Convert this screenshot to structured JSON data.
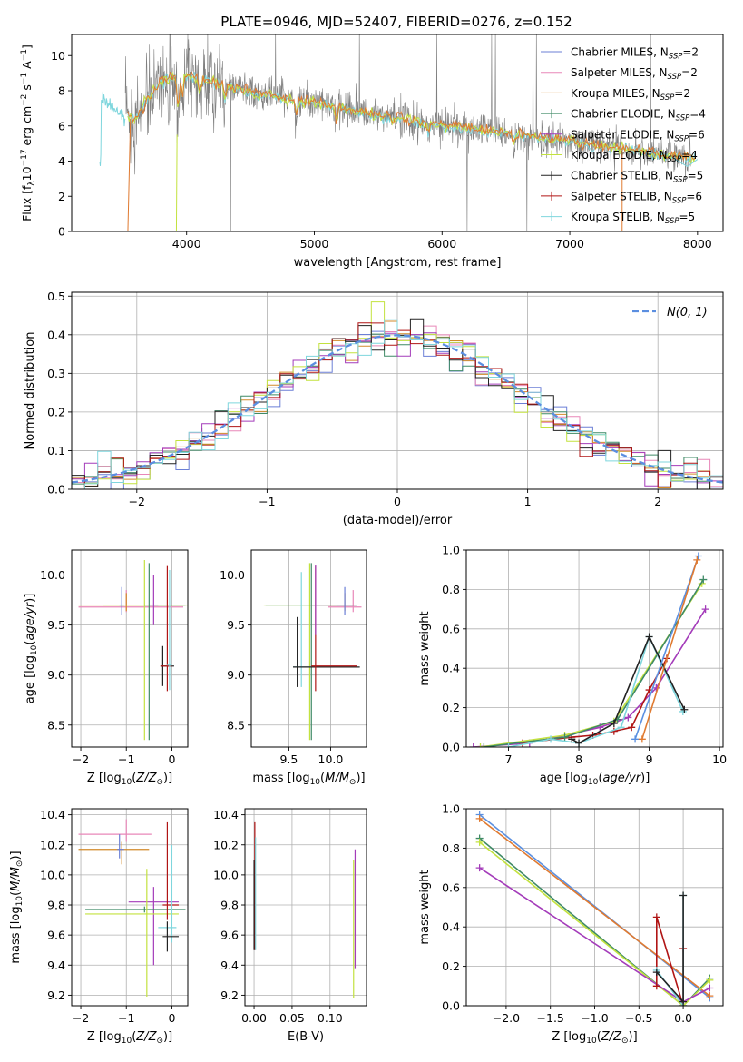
{
  "figure_title": "PLATE=0946, MJD=52407, FIBERID=0276, z=0.152",
  "colors": {
    "chabrier_miles": "#6b7fd6",
    "salpeter_miles": "#e887b8",
    "kroupa_miles": "#d28a2a",
    "chabrier_elodie": "#3f8a66",
    "salpeter_elodie": "#a43cba",
    "kroupa_elodie": "#c3e23f",
    "chabrier_stelib": "#222222",
    "salpeter_stelib": "#b01515",
    "kroupa_stelib": "#7fd6dd",
    "data_gray": "#7f7f7f",
    "orange": "#e07a30",
    "blue": "#5a8fe0",
    "green": "#4aa04a",
    "gaussian": "#5b8ee0"
  },
  "chart_data": [
    {
      "type": "line",
      "id": "spectrum",
      "title": "PLATE=0946, MJD=52407, FIBERID=0276, z=0.152",
      "xlabel": "wavelength [Angstrom, rest frame]",
      "ylabel": "Flux [fλ10⁻¹⁷ erg cm⁻² s⁻¹ A⁻¹]",
      "xlim": [
        3100,
        8200
      ],
      "ylim": [
        0,
        11.2
      ],
      "xticks": [
        4000,
        5000,
        6000,
        7000,
        8000
      ],
      "yticks": [
        0,
        2,
        4,
        6,
        8,
        10
      ],
      "legend_position": "top-right",
      "legend": [
        "Chabrier MILES, N_SSP=2",
        "Salpeter MILES, N_SSP=2",
        "Kroupa MILES, N_SSP=2",
        "Chabrier ELODIE, N_SSP=4",
        "Salpeter ELODIE, N_SSP=6",
        "Kroupa ELODIE, N_SSP=4",
        "Chabrier STELIB, N_SSP=5",
        "Salpeter STELIB, N_SSP=6",
        "Kroupa STELIB, N_SSP=5"
      ],
      "model_continuum": {
        "x": [
          3330,
          3500,
          3600,
          3800,
          4000,
          4200,
          4500,
          5000,
          5500,
          6000,
          6500,
          7000,
          7500,
          8000
        ],
        "y": [
          7.5,
          6.6,
          6.4,
          8.6,
          8.9,
          8.5,
          7.9,
          7.3,
          6.6,
          6.0,
          5.6,
          5.1,
          4.6,
          4.1
        ]
      }
    },
    {
      "type": "step",
      "id": "residuals",
      "xlabel": "(data-model)/error",
      "ylabel": "Normed distribution",
      "xlim": [
        -2.5,
        2.5
      ],
      "ylim": [
        0,
        0.51
      ],
      "xticks": [
        -2,
        -1,
        0,
        1,
        2
      ],
      "yticks": [
        0.0,
        0.1,
        0.2,
        0.3,
        0.4,
        0.5
      ],
      "grid": true,
      "legend_position": "top-right",
      "gaussian_label": "N(0, 1)",
      "gaussian": {
        "mean": 0,
        "sigma": 1
      }
    },
    {
      "type": "errorbar",
      "id": "age_vs_Z",
      "xlabel": "Z [log10(Z/Z⊙)]",
      "ylabel": "age  [log10(age/yr)]",
      "xlim": [
        -2.2,
        0.35
      ],
      "ylim": [
        8.28,
        10.25
      ],
      "xticks": [
        -2,
        -1,
        0
      ],
      "yticks": [
        8.5,
        9.0,
        9.5,
        10.0
      ],
      "grid": true,
      "points": [
        {
          "series": "salpeter_miles",
          "x": -1.0,
          "y": 9.68,
          "xerr": [
            1.05,
            1.25
          ],
          "yerr": [
            0.05,
            0.17
          ]
        },
        {
          "series": "kroupa_miles",
          "x": -1.0,
          "y": 9.7,
          "xerr": [
            1.05,
            1.25
          ],
          "yerr": [
            0.06,
            0.12
          ]
        },
        {
          "series": "chabrier_miles",
          "x": -1.1,
          "y": 9.7,
          "xerr": [
            0.05,
            0.05
          ],
          "yerr": [
            0.1,
            0.18
          ]
        },
        {
          "series": "kroupa_elodie",
          "x": -0.6,
          "y": 9.7,
          "xerr": [
            0.9,
            0.95
          ],
          "yerr": [
            1.35,
            0.45
          ]
        },
        {
          "series": "chabrier_elodie",
          "x": -0.5,
          "y": 9.7,
          "xerr": [
            0.1,
            0.8
          ],
          "yerr": [
            1.35,
            0.42
          ]
        },
        {
          "series": "salpeter_elodie",
          "x": -0.4,
          "y": 9.7,
          "xerr": [
            0.1,
            0.1
          ],
          "yerr": [
            0.2,
            0.3
          ]
        },
        {
          "series": "chabrier_stelib",
          "x": -0.2,
          "y": 9.09,
          "xerr": [
            0.05,
            0.25
          ],
          "yerr": [
            0.2,
            0.2
          ]
        },
        {
          "series": "salpeter_stelib",
          "x": -0.1,
          "y": 9.09,
          "xerr": [
            0.15,
            0.1
          ],
          "yerr": [
            0.25,
            1.0
          ]
        },
        {
          "series": "kroupa_stelib",
          "x": -0.05,
          "y": 9.1,
          "xerr": [
            0.05,
            0.05
          ],
          "yerr": [
            0.25,
            0.95
          ]
        }
      ]
    },
    {
      "type": "errorbar",
      "id": "age_vs_mass",
      "xlabel": "mass [log10(M/M⊙)]",
      "ylabel": "",
      "xlim": [
        9.05,
        10.43
      ],
      "ylim": [
        8.28,
        10.25
      ],
      "xticks": [
        9.5,
        10.0
      ],
      "yticks": [
        8.5,
        9.0,
        9.5,
        10.0
      ],
      "grid": true,
      "points": [
        {
          "series": "kroupa_elodie",
          "x": 9.75,
          "y": 9.7,
          "xerr": [
            0.55,
            0.55
          ],
          "yerr": [
            1.35,
            0.42
          ]
        },
        {
          "series": "chabrier_elodie",
          "x": 9.77,
          "y": 9.7,
          "xerr": [
            0.55,
            0.55
          ],
          "yerr": [
            1.35,
            0.42
          ]
        },
        {
          "series": "salpeter_miles",
          "x": 10.27,
          "y": 9.68,
          "xerr": [
            0.3,
            0.1
          ],
          "yerr": [
            0.05,
            0.17
          ]
        },
        {
          "series": "kroupa_miles",
          "x": 10.17,
          "y": 9.7,
          "xerr": [
            0.2,
            0.1
          ],
          "yerr": [
            0.06,
            0.12
          ]
        },
        {
          "series": "chabrier_miles",
          "x": 10.17,
          "y": 9.7,
          "xerr": [
            0.1,
            0.1
          ],
          "yerr": [
            0.1,
            0.18
          ]
        },
        {
          "series": "kroupa_stelib",
          "x": 9.65,
          "y": 9.08,
          "xerr": [
            0.1,
            0.6
          ],
          "yerr": [
            0.2,
            0.95
          ]
        },
        {
          "series": "chabrier_stelib",
          "x": 9.6,
          "y": 9.08,
          "xerr": [
            0.05,
            0.75
          ],
          "yerr": [
            0.2,
            0.5
          ]
        },
        {
          "series": "salpeter_stelib",
          "x": 9.82,
          "y": 9.09,
          "xerr": [
            0.05,
            0.5
          ],
          "yerr": [
            0.25,
            1.0
          ]
        },
        {
          "series": "salpeter_elodie",
          "x": 9.82,
          "y": 9.7,
          "xerr": [
            0.05,
            0.5
          ],
          "yerr": [
            0.3,
            0.4
          ]
        }
      ]
    },
    {
      "type": "line",
      "id": "massweight_vs_age",
      "xlabel": "age  [log10(age/yr)]",
      "ylabel": "mass weight",
      "xlim": [
        6.4,
        10.05
      ],
      "ylim": [
        0,
        1.0
      ],
      "xticks": [
        7,
        8,
        9,
        10
      ],
      "yticks": [
        0.0,
        0.2,
        0.4,
        0.6,
        0.8,
        1.0
      ],
      "grid": true,
      "series": [
        {
          "key": "salpeter_elodie",
          "x": [
            6.5,
            7.3,
            8.3,
            8.7,
            9.1,
            9.8
          ],
          "y": [
            0.0,
            0.02,
            0.1,
            0.15,
            0.3,
            0.7
          ]
        },
        {
          "key": "salpeter_stelib",
          "x": [
            7.2,
            7.9,
            8.2,
            8.5,
            8.75,
            9.0,
            9.25
          ],
          "y": [
            0.02,
            0.05,
            0.06,
            0.08,
            0.1,
            0.29,
            0.45
          ]
        },
        {
          "key": "kroupa_elodie",
          "x": [
            6.6,
            7.8,
            8.5,
            9.75
          ],
          "y": [
            0.0,
            0.06,
            0.13,
            0.83
          ]
        },
        {
          "key": "chabrier_elodie",
          "x": [
            6.65,
            7.8,
            8.55,
            9.77
          ],
          "y": [
            0.0,
            0.05,
            0.14,
            0.85
          ]
        },
        {
          "key": "kroupa_stelib",
          "x": [
            7.0,
            7.6,
            8.0,
            8.6,
            9.0,
            9.48
          ],
          "y": [
            0.0,
            0.04,
            0.02,
            0.1,
            0.56,
            0.18
          ]
        },
        {
          "key": "chabrier_stelib",
          "x": [
            7.9,
            8.0,
            8.5,
            9.0,
            9.5
          ],
          "y": [
            0.04,
            0.02,
            0.12,
            0.56,
            0.19
          ]
        },
        {
          "key": "blue",
          "x": [
            8.8,
            9.7
          ],
          "y": [
            0.04,
            0.97
          ]
        },
        {
          "key": "orange",
          "x": [
            8.9,
            9.68
          ],
          "y": [
            0.04,
            0.95
          ]
        }
      ]
    },
    {
      "type": "errorbar",
      "id": "mass_vs_Z",
      "xlabel": "Z [log10(Z/Z⊙)]",
      "ylabel": "mass [log10(M/M⊙)]",
      "xlim": [
        -2.2,
        0.35
      ],
      "ylim": [
        9.13,
        10.44
      ],
      "xticks": [
        -2,
        -1,
        0
      ],
      "yticks": [
        9.2,
        9.4,
        9.6,
        9.8,
        10.0,
        10.2,
        10.4
      ],
      "grid": true,
      "points": [
        {
          "series": "salpeter_miles",
          "x": -1.0,
          "y": 10.27,
          "xerr": [
            1.05,
            0.55
          ],
          "yerr": [
            0.05,
            0.1
          ]
        },
        {
          "series": "kroupa_miles",
          "x": -1.1,
          "y": 10.17,
          "xerr": [
            0.95,
            0.6
          ],
          "yerr": [
            0.1,
            0.05
          ]
        },
        {
          "series": "chabrier_miles",
          "x": -1.15,
          "y": 10.17,
          "xerr": [
            0.05,
            0.1
          ],
          "yerr": [
            0.06,
            0.1
          ]
        },
        {
          "series": "salpeter_elodie",
          "x": -0.4,
          "y": 9.82,
          "xerr": [
            0.55,
            0.55
          ],
          "yerr": [
            0.42,
            0.1
          ]
        },
        {
          "series": "chabrier_elodie",
          "x": -0.6,
          "y": 9.77,
          "xerr": [
            1.3,
            0.9
          ],
          "yerr": [
            0.02,
            0.02
          ]
        },
        {
          "series": "kroupa_elodie",
          "x": -0.55,
          "y": 9.74,
          "xerr": [
            1.35,
            0.7
          ],
          "yerr": [
            0.55,
            0.3
          ]
        },
        {
          "series": "salpeter_stelib",
          "x": -0.1,
          "y": 9.8,
          "xerr": [
            0.1,
            0.25
          ],
          "yerr": [
            0.1,
            0.55
          ]
        },
        {
          "series": "kroupa_stelib",
          "x": 0.0,
          "y": 9.65,
          "xerr": [
            0.3,
            0.1
          ],
          "yerr": [
            0.1,
            0.55
          ]
        },
        {
          "series": "chabrier_stelib",
          "x": -0.1,
          "y": 9.59,
          "xerr": [
            0.1,
            0.25
          ],
          "yerr": [
            0.1,
            0.1
          ]
        }
      ]
    },
    {
      "type": "errorbar",
      "id": "mass_vs_ebv",
      "xlabel": "E(B-V)",
      "ylabel": "",
      "xlim": [
        -0.012,
        0.148
      ],
      "ylim": [
        9.13,
        10.44
      ],
      "xticks": [
        0.0,
        0.05,
        0.1
      ],
      "yticks": [
        9.2,
        9.4,
        9.6,
        9.8,
        10.0,
        10.2,
        10.4
      ],
      "grid": true,
      "points": [
        {
          "series": "salpeter_stelib",
          "x": 0.001,
          "y": 10.0,
          "xerr": [
            0,
            0
          ],
          "yerr": [
            0.5,
            0.35
          ]
        },
        {
          "series": "chabrier_stelib",
          "x": 0.0,
          "y": 9.8,
          "xerr": [
            0,
            0
          ],
          "yerr": [
            0.3,
            0.3
          ]
        },
        {
          "series": "kroupa_stelib",
          "x": 0.002,
          "y": 9.9,
          "xerr": [
            0,
            0
          ],
          "yerr": [
            0.4,
            0.35
          ]
        },
        {
          "series": "salpeter_elodie",
          "x": 0.133,
          "y": 9.8,
          "xerr": [
            0,
            0
          ],
          "yerr": [
            0.42,
            0.37
          ]
        },
        {
          "series": "kroupa_elodie",
          "x": 0.131,
          "y": 9.75,
          "xerr": [
            0,
            0
          ],
          "yerr": [
            0.57,
            0.35
          ]
        }
      ]
    },
    {
      "type": "line",
      "id": "massweight_vs_Z",
      "xlabel": "Z [log10(Z/Z⊙)]",
      "ylabel": "mass weight",
      "xlim": [
        -2.45,
        0.45
      ],
      "ylim": [
        0,
        1.0
      ],
      "xticks": [
        -2.0,
        -1.5,
        -1.0,
        -0.5,
        0.0
      ],
      "yticks": [
        0.0,
        0.2,
        0.4,
        0.6,
        0.8,
        1.0
      ],
      "grid": true,
      "series": [
        {
          "key": "blue",
          "x": [
            -2.3,
            0.3
          ],
          "y": [
            0.97,
            0.04
          ]
        },
        {
          "key": "orange",
          "x": [
            -2.3,
            0.3
          ],
          "y": [
            0.95,
            0.05
          ]
        },
        {
          "key": "chabrier_elodie",
          "x": [
            -2.3,
            0.0,
            0.3
          ],
          "y": [
            0.85,
            0.0,
            0.14
          ]
        },
        {
          "key": "kroupa_elodie",
          "x": [
            -2.3,
            0.0,
            0.3
          ],
          "y": [
            0.83,
            0.0,
            0.13
          ]
        },
        {
          "key": "salpeter_elodie",
          "x": [
            -2.3,
            0.0,
            0.3
          ],
          "y": [
            0.7,
            0.02,
            0.09
          ]
        },
        {
          "key": "salpeter_stelib",
          "x": [
            -0.3,
            -0.3,
            0.0,
            0.0
          ],
          "y": [
            0.1,
            0.45,
            0.0,
            0.29
          ]
        },
        {
          "key": "kroupa_stelib",
          "x": [
            -0.3,
            0.0,
            0.0
          ],
          "y": [
            0.18,
            0.0,
            0.56
          ]
        },
        {
          "key": "chabrier_stelib",
          "x": [
            -0.3,
            0.0,
            0.0
          ],
          "y": [
            0.17,
            0.02,
            0.56
          ]
        }
      ]
    }
  ]
}
